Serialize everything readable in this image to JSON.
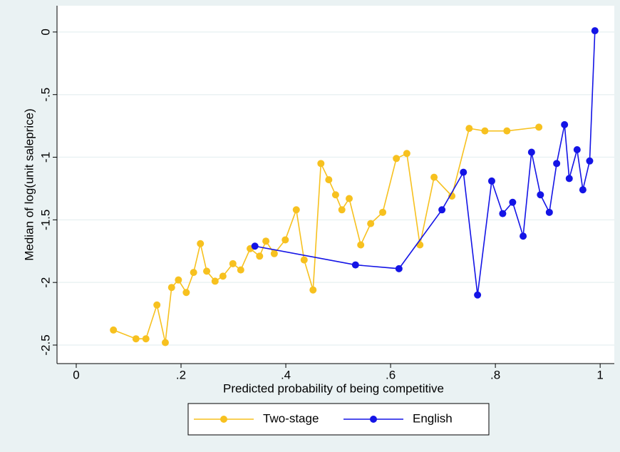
{
  "chart_data": {
    "type": "line",
    "xlabel": "Predicted probability of being competitive",
    "ylabel": "Median of log(unit saleprice)",
    "xlim": [
      -0.0367,
      1.027
    ],
    "ylim": [
      -2.648,
      0.21
    ],
    "xticks": [
      0,
      {
        "value": 0.2,
        "label": ".2"
      },
      {
        "value": 0.4,
        "label": ".4"
      },
      {
        "value": 0.6,
        "label": ".6"
      },
      {
        "value": 0.8,
        "label": ".8"
      },
      1
    ],
    "yticks": [
      0,
      {
        "value": -0.5,
        "label": "-.5"
      },
      -1,
      -1.5,
      -2,
      -2.5
    ],
    "grid": true,
    "legend": "bottom",
    "series": [
      {
        "name": "Two-stage",
        "color": "#f7c11f",
        "x": [
          0.071,
          0.114,
          0.133,
          0.154,
          0.17,
          0.182,
          0.195,
          0.21,
          0.224,
          0.237,
          0.249,
          0.265,
          0.28,
          0.299,
          0.314,
          0.332,
          0.35,
          0.362,
          0.378,
          0.399,
          0.42,
          0.435,
          0.452,
          0.467,
          0.482,
          0.495,
          0.507,
          0.521,
          0.543,
          0.562,
          0.585,
          0.611,
          0.631,
          0.656,
          0.683,
          0.717,
          0.75,
          0.78,
          0.822,
          0.883
        ],
        "values": [
          -2.38,
          -2.45,
          -2.45,
          -2.18,
          -2.48,
          -2.04,
          -1.98,
          -2.08,
          -1.92,
          -1.69,
          -1.91,
          -1.99,
          -1.95,
          -1.85,
          -1.9,
          -1.73,
          -1.79,
          -1.67,
          -1.77,
          -1.66,
          -1.42,
          -1.82,
          -2.06,
          -1.05,
          -1.18,
          -1.3,
          -1.42,
          -1.33,
          -1.7,
          -1.53,
          -1.44,
          -1.01,
          -0.97,
          -1.7,
          -1.16,
          -1.31,
          -0.77,
          -0.79,
          -0.79,
          -0.76
        ]
      },
      {
        "name": "English",
        "color": "#1414e6",
        "x": [
          0.341,
          0.533,
          0.616,
          0.698,
          0.739,
          0.766,
          0.793,
          0.814,
          0.833,
          0.853,
          0.869,
          0.886,
          0.903,
          0.917,
          0.932,
          0.941,
          0.956,
          0.967,
          0.98,
          0.99
        ],
        "values": [
          -1.71,
          -1.86,
          -1.89,
          -1.42,
          -1.12,
          -2.1,
          -1.19,
          -1.45,
          -1.36,
          -1.63,
          -0.96,
          -1.3,
          -1.44,
          -1.05,
          -0.74,
          -1.17,
          -0.94,
          -1.26,
          -1.03,
          0.01
        ]
      }
    ]
  }
}
